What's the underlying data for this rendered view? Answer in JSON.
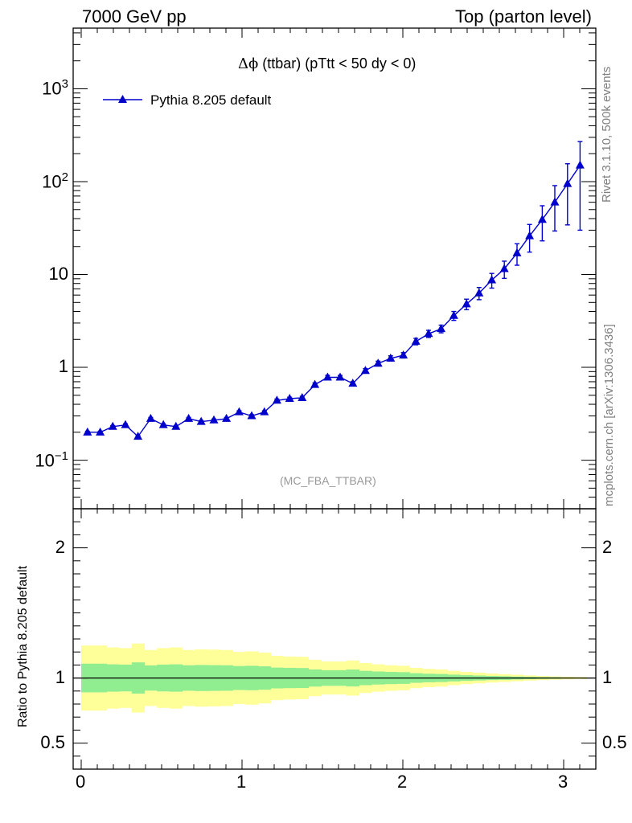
{
  "header": {
    "left": "7000 GeV pp",
    "right": "Top (parton level)"
  },
  "side_labels": {
    "rivet": "Rivet 3.1.10,  500k events",
    "mcplots": "mcplots.cern.ch [arXiv:1306.3436]"
  },
  "chart_data": [
    {
      "type": "line",
      "title": "Δϕ (ttbar) (pTtt < 50 dy < 0)",
      "title_prefix": "Δϕ",
      "title_rest": " (ttbar) (pTtt < 50 dy < 0)",
      "analysis_tag": "(MC_FBA_TTBAR)",
      "yscale": "log",
      "ylim": [
        0.03,
        4500
      ],
      "xlim": [
        -0.05,
        3.2
      ],
      "y_ticks": [
        {
          "value": 1000,
          "base": "10",
          "exp": "3"
        },
        {
          "value": 100,
          "base": "10",
          "exp": "2"
        },
        {
          "value": 10,
          "base": "10",
          "exp": ""
        },
        {
          "value": 1,
          "base": "1",
          "exp": ""
        },
        {
          "value": 0.1,
          "base": "10",
          "exp": "−1"
        }
      ],
      "legend": {
        "placement": "top-left",
        "label": "Pythia 8.205 default"
      },
      "series": [
        {
          "name": "Pythia 8.205 default",
          "color": "#0000cc",
          "marker": "triangle-up",
          "x": [
            0.039,
            0.118,
            0.196,
            0.275,
            0.353,
            0.432,
            0.511,
            0.589,
            0.668,
            0.746,
            0.825,
            0.903,
            0.982,
            1.06,
            1.139,
            1.217,
            1.296,
            1.374,
            1.453,
            1.532,
            1.61,
            1.689,
            1.767,
            1.846,
            1.924,
            2.003,
            2.081,
            2.16,
            2.238,
            2.317,
            2.396,
            2.474,
            2.553,
            2.631,
            2.71,
            2.788,
            2.867,
            2.945,
            3.024,
            3.102
          ],
          "y": [
            0.2,
            0.2,
            0.23,
            0.24,
            0.18,
            0.28,
            0.24,
            0.23,
            0.28,
            0.26,
            0.27,
            0.28,
            0.33,
            0.3,
            0.33,
            0.44,
            0.46,
            0.47,
            0.65,
            0.78,
            0.78,
            0.67,
            0.92,
            1.1,
            1.25,
            1.35,
            1.9,
            2.3,
            2.6,
            3.6,
            4.8,
            6.3,
            8.7,
            11.5,
            17,
            26,
            39,
            60,
            95,
            150
          ],
          "yerr": [
            0.025,
            0.025,
            0.026,
            0.027,
            0.024,
            0.029,
            0.027,
            0.026,
            0.029,
            0.028,
            0.028,
            0.029,
            0.032,
            0.03,
            0.032,
            0.036,
            0.037,
            0.038,
            0.045,
            0.05,
            0.05,
            0.046,
            0.055,
            0.06,
            0.064,
            0.067,
            0.08,
            0.088,
            0.095,
            0.11,
            0.13,
            0.15,
            0.18,
            0.21,
            0.26,
            0.33,
            0.41,
            0.51,
            0.64,
            0.8
          ]
        }
      ]
    },
    {
      "type": "area",
      "ylabel": "Ratio to Pythia 8.205 default",
      "xlim": [
        -0.05,
        3.2
      ],
      "ylim": [
        0.3,
        2.3
      ],
      "y_ticks": [
        2,
        1,
        0.5
      ],
      "y_tick_labels": [
        "2",
        "1",
        "0.5"
      ],
      "x_ticks": [
        0,
        1,
        2,
        3
      ],
      "x_tick_labels": [
        "0",
        "1",
        "2",
        "3"
      ],
      "reference_line": 1,
      "bin_edges": [
        0,
        0.0785,
        0.157,
        0.2355,
        0.314,
        0.3925,
        0.471,
        0.5495,
        0.628,
        0.7065,
        0.785,
        0.8635,
        0.942,
        1.0205,
        1.099,
        1.1775,
        1.256,
        1.3345,
        1.413,
        1.4915,
        1.57,
        1.6485,
        1.727,
        1.8055,
        1.884,
        1.9625,
        2.041,
        2.1195,
        2.198,
        2.2765,
        2.355,
        2.4335,
        2.512,
        2.5905,
        2.669,
        2.7475,
        2.826,
        2.9045,
        2.983,
        3.0615,
        3.1416
      ],
      "bands": [
        {
          "name": "1 sigma",
          "color": "#90ee90",
          "halfwidth": [
            0.11,
            0.11,
            0.105,
            0.103,
            0.12,
            0.097,
            0.103,
            0.105,
            0.098,
            0.1,
            0.099,
            0.098,
            0.092,
            0.094,
            0.09,
            0.08,
            0.078,
            0.077,
            0.066,
            0.06,
            0.06,
            0.065,
            0.055,
            0.05,
            0.047,
            0.045,
            0.037,
            0.033,
            0.031,
            0.026,
            0.022,
            0.019,
            0.016,
            0.014,
            0.011,
            0.009,
            0.007,
            0.006,
            0.004,
            0.003
          ]
        },
        {
          "name": "2 sigma",
          "color": "#ffff99",
          "halfwidth": [
            0.25,
            0.25,
            0.235,
            0.23,
            0.265,
            0.215,
            0.23,
            0.235,
            0.215,
            0.22,
            0.218,
            0.215,
            0.2,
            0.205,
            0.195,
            0.17,
            0.165,
            0.163,
            0.14,
            0.127,
            0.127,
            0.135,
            0.115,
            0.105,
            0.098,
            0.094,
            0.078,
            0.07,
            0.066,
            0.055,
            0.047,
            0.041,
            0.035,
            0.03,
            0.025,
            0.02,
            0.016,
            0.013,
            0.01,
            0.008
          ]
        }
      ]
    }
  ]
}
